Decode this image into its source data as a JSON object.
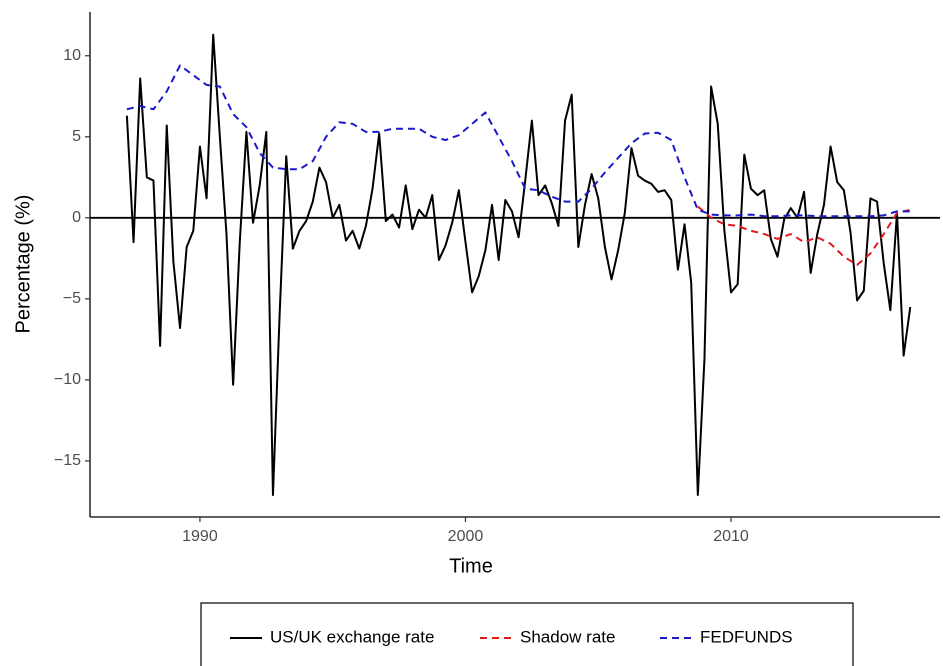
{
  "chart_data": {
    "type": "line",
    "x_label": "Time",
    "y_label": "Percentage (%)",
    "xlim": [
      1985.86,
      2017.87
    ],
    "ylim": [
      -18.46,
      12.7
    ],
    "xticks": [
      1990,
      2000,
      2010
    ],
    "yticks": [
      {
        "value": -15,
        "label": "−15"
      },
      {
        "value": -10,
        "label": "−10"
      },
      {
        "value": -5,
        "label": "−5"
      },
      0,
      5,
      10
    ],
    "hline": 0,
    "legend": "bottom",
    "series": [
      {
        "name": "US/UK exchange rate",
        "color": "#000000",
        "dash": "solid",
        "x": [
          1987.25,
          1987.5,
          1987.75,
          1988,
          1988.25,
          1988.5,
          1988.75,
          1989,
          1989.25,
          1989.5,
          1989.75,
          1990,
          1990.25,
          1990.5,
          1990.75,
          1991,
          1991.25,
          1991.5,
          1991.75,
          1992,
          1992.25,
          1992.5,
          1992.75,
          1993,
          1993.25,
          1993.5,
          1993.75,
          1994,
          1994.25,
          1994.5,
          1994.75,
          1995,
          1995.25,
          1995.5,
          1995.75,
          1996,
          1996.25,
          1996.5,
          1996.75,
          1997,
          1997.25,
          1997.5,
          1997.75,
          1998,
          1998.25,
          1998.5,
          1998.75,
          1999,
          1999.25,
          1999.5,
          1999.75,
          2000,
          2000.25,
          2000.5,
          2000.75,
          2001,
          2001.25,
          2001.5,
          2001.75,
          2002,
          2002.25,
          2002.5,
          2002.75,
          2003,
          2003.25,
          2003.5,
          2003.75,
          2004,
          2004.25,
          2004.5,
          2004.75,
          2005,
          2005.25,
          2005.5,
          2005.75,
          2006,
          2006.25,
          2006.5,
          2006.75,
          2007,
          2007.25,
          2007.5,
          2007.75,
          2008,
          2008.25,
          2008.5,
          2008.75,
          2009,
          2009.25,
          2009.5,
          2009.75,
          2010,
          2010.25,
          2010.5,
          2010.75,
          2011,
          2011.25,
          2011.5,
          2011.75,
          2012,
          2012.25,
          2012.5,
          2012.75,
          2013,
          2013.25,
          2013.5,
          2013.75,
          2014,
          2014.25,
          2014.5,
          2014.75,
          2015,
          2015.25,
          2015.5,
          2015.75,
          2016,
          2016.25,
          2016.5,
          2016.75
        ],
        "values": [
          6.3,
          -1.5,
          8.6,
          2.5,
          2.3,
          -7.9,
          5.7,
          -2.7,
          -6.8,
          -1.8,
          -0.8,
          4.4,
          1.2,
          11.3,
          5.0,
          -1.0,
          -10.3,
          -1.5,
          5.3,
          -0.3,
          2.0,
          5.3,
          -17.1,
          -6.0,
          3.8,
          -1.9,
          -0.8,
          -0.2,
          1.0,
          3.1,
          2.2,
          0.0,
          0.8,
          -1.4,
          -0.8,
          -1.9,
          -0.5,
          1.8,
          5.2,
          -0.2,
          0.2,
          -0.6,
          2.0,
          -0.7,
          0.5,
          0.0,
          1.4,
          -2.6,
          -1.7,
          -0.3,
          1.7,
          -1.5,
          -4.6,
          -3.6,
          -2.0,
          0.8,
          -2.6,
          1.1,
          0.4,
          -1.2,
          2.3,
          6.0,
          1.4,
          2.0,
          0.9,
          -0.5,
          6.0,
          7.6,
          -1.8,
          0.8,
          2.7,
          1.2,
          -1.8,
          -3.8,
          -2.0,
          0.3,
          4.3,
          2.6,
          2.3,
          2.1,
          1.6,
          1.7,
          1.1,
          -3.2,
          -0.4,
          -4.0,
          -17.1,
          -8.7,
          8.1,
          5.8,
          -0.8,
          -4.6,
          -4.1,
          3.9,
          1.8,
          1.4,
          1.7,
          -1.3,
          -2.4,
          -0.1,
          0.6,
          0.0,
          1.6,
          -3.4,
          -1.0,
          0.8,
          4.4,
          2.2,
          1.7,
          -0.9,
          -5.1,
          -4.5,
          1.2,
          1.0,
          -2.8,
          -5.7,
          0.3,
          -8.5,
          -5.5
        ]
      },
      {
        "name": "Shadow rate",
        "color": "#e41a1c",
        "dash": "dashed",
        "x": [
          2008.75,
          2009.25,
          2009.75,
          2010.25,
          2010.75,
          2011.25,
          2011.75,
          2012.25,
          2012.75,
          2013.25,
          2013.75,
          2014.25,
          2014.75,
          2015.25,
          2015.75,
          2016.25,
          2016.75
        ],
        "values": [
          0.7,
          0.0,
          -0.4,
          -0.5,
          -0.8,
          -1.0,
          -1.3,
          -1.0,
          -1.5,
          -1.2,
          -1.6,
          -2.4,
          -2.9,
          -2.2,
          -1.0,
          0.3,
          0.5
        ]
      },
      {
        "name": "FEDFUNDS",
        "color": "#1a1acc",
        "dash": "dashed",
        "x": [
          1987.25,
          1987.75,
          1988.25,
          1988.75,
          1989.25,
          1989.75,
          1990.25,
          1990.75,
          1991.25,
          1991.75,
          1992.25,
          1992.75,
          1993.25,
          1993.75,
          1994.25,
          1994.75,
          1995.25,
          1995.75,
          1996.25,
          1996.75,
          1997.25,
          1997.75,
          1998.25,
          1998.75,
          1999.25,
          1999.75,
          2000.25,
          2000.75,
          2001.25,
          2001.75,
          2002.25,
          2002.75,
          2003.25,
          2003.75,
          2004.25,
          2004.75,
          2005.25,
          2005.75,
          2006.25,
          2006.75,
          2007.25,
          2007.75,
          2008.25,
          2008.75,
          2009.25,
          2009.75,
          2010.25,
          2010.75,
          2011.25,
          2011.75,
          2012.25,
          2012.75,
          2013.25,
          2013.75,
          2014.25,
          2014.75,
          2015.25,
          2015.75,
          2016.25,
          2016.75
        ],
        "values": [
          6.7,
          6.9,
          6.7,
          7.8,
          9.4,
          8.8,
          8.2,
          8.1,
          6.4,
          5.6,
          4.0,
          3.1,
          3.0,
          3.0,
          3.5,
          5.0,
          5.9,
          5.8,
          5.3,
          5.3,
          5.5,
          5.5,
          5.5,
          5.0,
          4.8,
          5.1,
          5.8,
          6.5,
          5.0,
          3.5,
          1.8,
          1.7,
          1.3,
          1.0,
          1.0,
          1.8,
          2.8,
          3.7,
          4.6,
          5.2,
          5.25,
          4.8,
          2.5,
          0.5,
          0.2,
          0.15,
          0.15,
          0.2,
          0.1,
          0.1,
          0.15,
          0.15,
          0.1,
          0.1,
          0.1,
          0.1,
          0.1,
          0.15,
          0.4,
          0.4
        ]
      }
    ]
  }
}
